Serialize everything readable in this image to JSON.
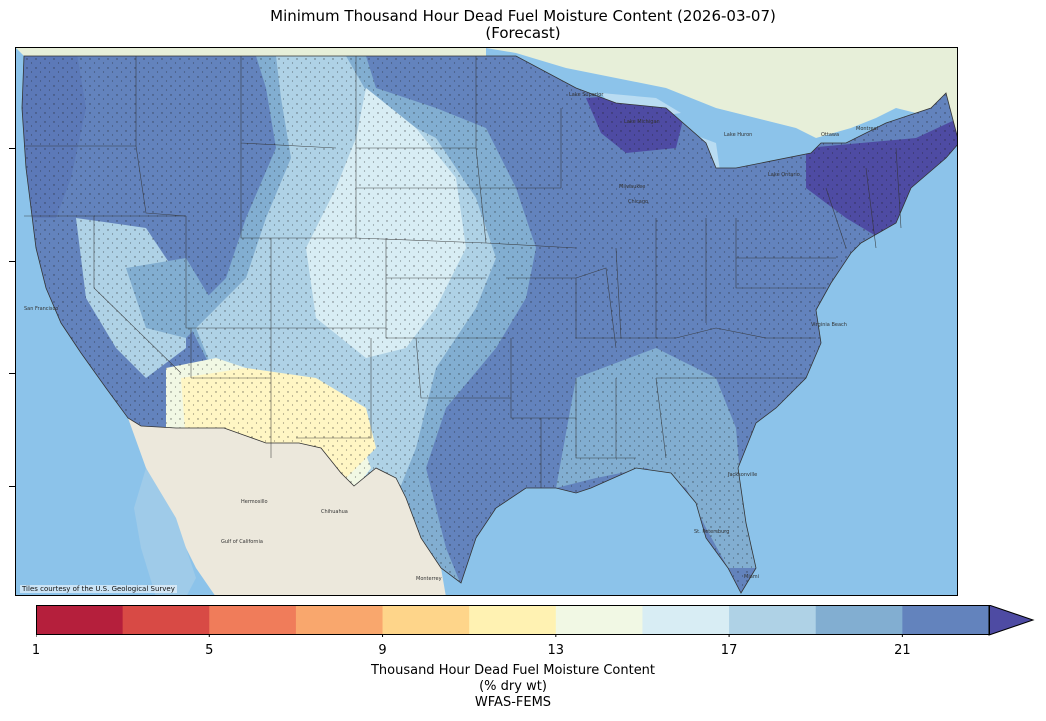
{
  "title": {
    "line1": "Minimum Thousand Hour Dead Fuel Moisture Content (2026-03-07)",
    "line2": "(Forecast)"
  },
  "map": {
    "attribution": "Tiles courtesy of the U.S. Geological Survey",
    "places": [
      "Hermosillo",
      "Chihuahua",
      "Monterrey",
      "Gulf of California",
      "San Francisco",
      "Milwaukee",
      "Chicago",
      "Lake Superior",
      "Lake Michigan",
      "Lake Huron",
      "Ottawa",
      "Montreal",
      "Virginia Beach",
      "Jacksonville",
      "St. Petersburg",
      "Miami",
      "Lake Ontario"
    ],
    "colors": {
      "ocean": "#8cc3ea",
      "land_mexico": "#ece8dc",
      "land_canada": "#e7efd9",
      "lakes": "#b9dcf2",
      "fuel_5": "#d84a45",
      "fuel_9": "#fed58a",
      "fuel_11": "#fff2b2",
      "fuel_13": "#f1f8e4",
      "fuel_15": "#d8edf4",
      "fuel_17": "#afd2e6",
      "fuel_19": "#82aed1",
      "fuel_21": "#6383bd",
      "fuel_over": "#4e4ba3"
    }
  },
  "colorbar": {
    "boundaries": [
      1,
      3,
      5,
      7,
      9,
      11,
      13,
      15,
      17,
      19,
      21,
      23
    ],
    "colors": [
      "#b51f3c",
      "#d84a45",
      "#f07c5a",
      "#f9a76d",
      "#fed58a",
      "#fff2b2",
      "#f1f8e4",
      "#d8edf4",
      "#afd2e6",
      "#82aed1",
      "#6383bd"
    ],
    "extend_color": "#4e4ba3",
    "tick_labels": [
      "1",
      "5",
      "9",
      "13",
      "17",
      "21"
    ],
    "label_line1": "Thousand Hour Dead Fuel Moisture Content",
    "label_line2": "(% dry wt)",
    "label_line3": "WFAS-FEMS"
  }
}
